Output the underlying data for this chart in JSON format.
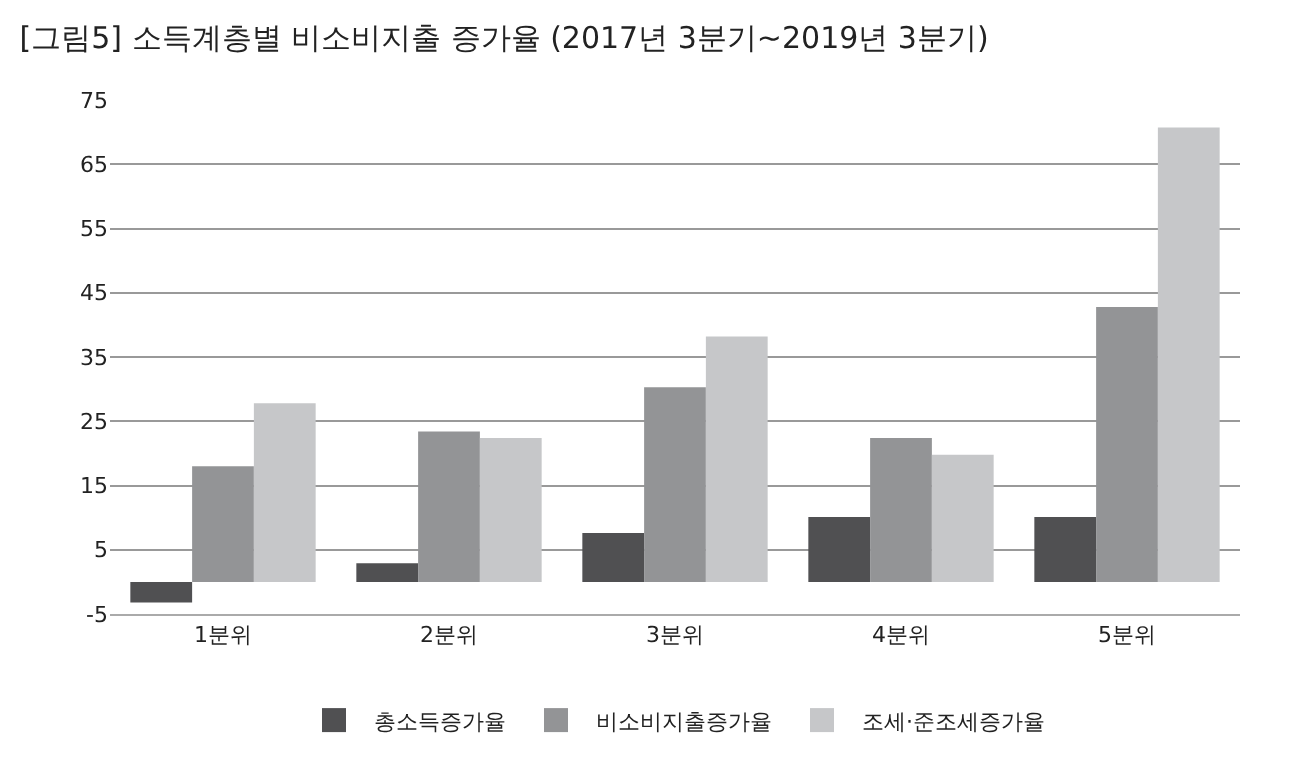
{
  "chart_data": {
    "type": "bar",
    "title": "[그림5] 소득계층별 비소비지출 증가율 (2017년 3분기~2019년 3분기)",
    "categories": [
      "1분위",
      "2분위",
      "3분위",
      "4분위",
      "5분위"
    ],
    "series": [
      {
        "name": "총소득증가율",
        "color": "#505052",
        "values": [
          -3.2,
          2.9,
          7.6,
          10.1,
          10.1
        ]
      },
      {
        "name": "비소비지출증가율",
        "color": "#939496",
        "values": [
          18.0,
          23.4,
          30.3,
          22.4,
          42.8
        ]
      },
      {
        "name": "조세·준조세증가율",
        "color": "#c6c7c9",
        "values": [
          27.8,
          22.4,
          38.2,
          19.8,
          70.7
        ]
      }
    ],
    "ylim": [
      -5,
      75
    ],
    "yticks": [
      -5,
      5,
      15,
      25,
      35,
      45,
      55,
      65,
      75
    ],
    "grid": "y",
    "legend": "bottom"
  }
}
